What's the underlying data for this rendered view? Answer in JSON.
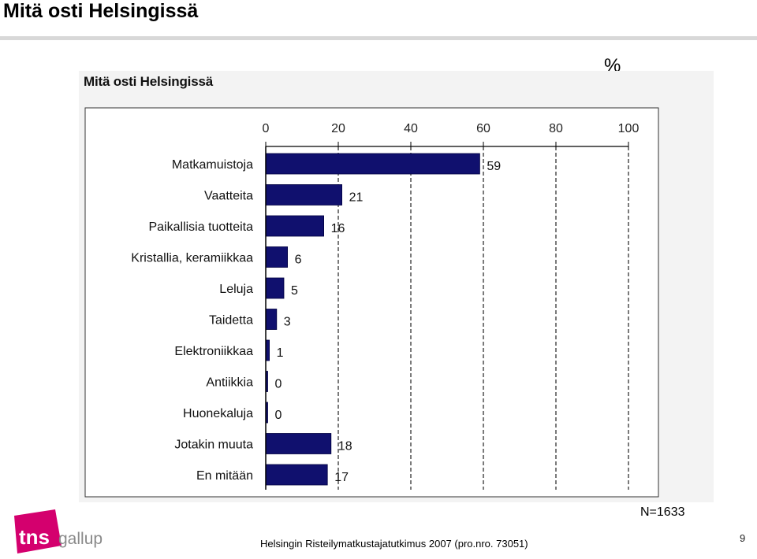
{
  "slide": {
    "title": "Mitä osti Helsingissä",
    "percent_label": "%",
    "n_label": "N=1633",
    "footnote": "Helsingin Risteilymatkustajatutkimus 2007 (pro.nro. 73051)",
    "page_number": "9"
  },
  "logo": {
    "text_main": "tns",
    "text_sub": "gallup",
    "brand_color": "#d4006e"
  },
  "chart_data": {
    "type": "bar",
    "orientation": "horizontal",
    "title": "Mitä osti Helsingissä",
    "categories": [
      "Matkamuistoja",
      "Vaatteita",
      "Paikallisia tuotteita",
      "Kristallia, keramiikkaa",
      "Leluja",
      "Taidetta",
      "Elektroniikkaa",
      "Antiikkia",
      "Huonekaluja",
      "Jotakin muuta",
      "En mitään"
    ],
    "values": [
      59,
      21,
      16,
      6,
      5,
      3,
      1,
      0,
      0,
      18,
      17
    ],
    "xlim": [
      0,
      100
    ],
    "xticks": [
      "0",
      "20",
      "40",
      "60",
      "80",
      "100"
    ],
    "xtick_values": [
      0,
      20,
      40,
      60,
      80,
      100
    ],
    "axis_position": "top",
    "gridlines": "dashed vertical",
    "bar_color": "#10106e"
  }
}
